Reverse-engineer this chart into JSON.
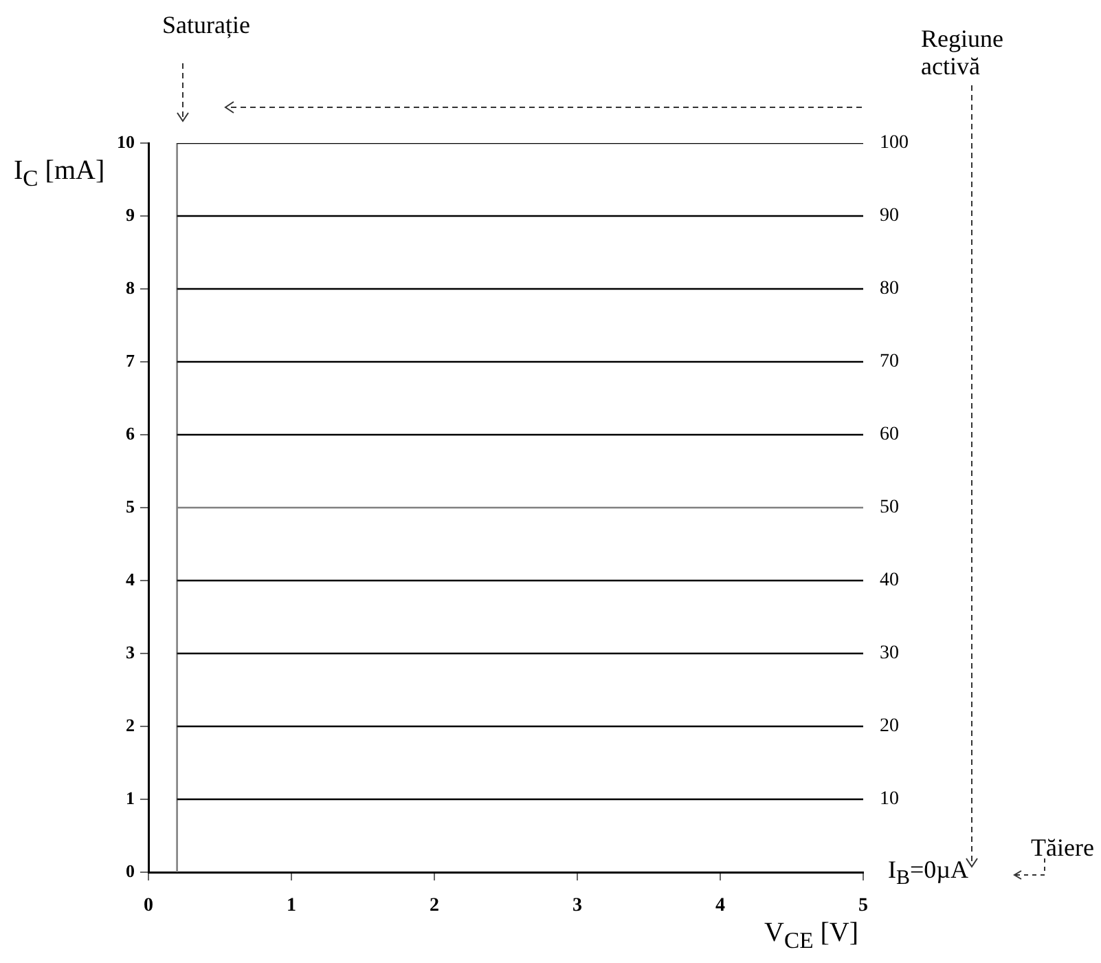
{
  "chart_data": {
    "type": "line",
    "xlabel": "V$_{CE}$ [V]",
    "ylabel": "I$_{C}$ [mA]",
    "xlim": [
      0,
      5
    ],
    "xticks": [
      0,
      1,
      2,
      3,
      4,
      5
    ],
    "ylim": [
      0,
      10
    ],
    "yticks": [
      0,
      1,
      2,
      3,
      4,
      5,
      6,
      7,
      8,
      9,
      10
    ],
    "grid": false,
    "legend": false,
    "annotations": [
      "Saturație",
      "Regiune activă",
      "Tăiere",
      "I$_{B}$=0µA"
    ],
    "ref_lines": [
      {
        "axis": "x",
        "value": 0.2,
        "color": "#808080"
      }
    ],
    "x": [
      0.2,
      5
    ],
    "series": [
      {
        "name": "10",
        "color": "#000000",
        "values": [
          1,
          1
        ]
      },
      {
        "name": "20",
        "color": "#000000",
        "values": [
          2,
          2
        ]
      },
      {
        "name": "30",
        "color": "#000000",
        "values": [
          3,
          3
        ]
      },
      {
        "name": "40",
        "color": "#000000",
        "values": [
          4,
          4
        ]
      },
      {
        "name": "50",
        "color": "#808080",
        "values": [
          5,
          5
        ]
      },
      {
        "name": "60",
        "color": "#000000",
        "values": [
          6,
          6
        ]
      },
      {
        "name": "70",
        "color": "#000000",
        "values": [
          7,
          7
        ]
      },
      {
        "name": "80",
        "color": "#000000",
        "values": [
          8,
          8
        ]
      },
      {
        "name": "90",
        "color": "#000000",
        "values": [
          9,
          9
        ]
      },
      {
        "name": "100",
        "color": "#000000",
        "values": [
          10,
          10
        ]
      }
    ]
  }
}
